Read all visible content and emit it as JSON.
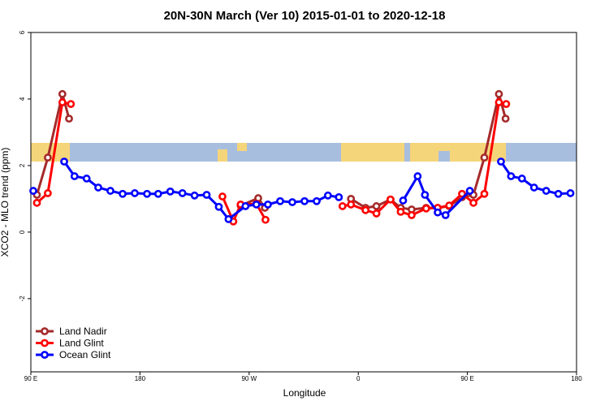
{
  "chart_data": {
    "type": "line",
    "title": "20N-30N March (Ver 10)   2015-01-01 to 2020-12-18",
    "x_label": "Longitude",
    "y_label": "XCO2 - MLO trend (ppm)",
    "xlim": [
      90,
      540
    ],
    "xticks": [
      {
        "value": 90,
        "label": "90 E"
      },
      180,
      {
        "value": 270,
        "label": "90 W"
      },
      {
        "value": 360,
        "label": "0"
      },
      {
        "value": 450,
        "label": "90 E"
      },
      180
    ],
    "ylim": [
      -4.2,
      6
    ],
    "yticks": [
      -2,
      0,
      2,
      4,
      6
    ],
    "legend": "bottom-left",
    "series": [
      {
        "name": "Land Nadir",
        "color": "#a52a2a",
        "x": [
          95,
          104,
          116,
          121.5,
          null,
          263,
          277.5,
          283,
          null,
          354,
          366,
          375,
          386.6,
          395,
          404,
          416,
          425.5,
          435,
          445.6,
          455,
          464,
          476,
          481.5
        ],
        "values": [
          1.12,
          2.24,
          4.15,
          3.41,
          null,
          0.8,
          1.02,
          0.73,
          null,
          1.0,
          0.73,
          0.78,
          0.98,
          0.73,
          0.68,
          0.73,
          0.73,
          0.78,
          1.05,
          1.12,
          2.24,
          4.15,
          3.41
        ]
      },
      {
        "name": "Land Glint",
        "color": "#ff0000",
        "x": [
          95,
          104,
          116,
          123,
          null,
          248,
          257,
          263,
          276,
          283.5,
          null,
          347,
          354,
          366,
          375,
          386.6,
          395,
          404,
          416,
          425.5,
          435,
          445.6,
          455,
          464,
          476,
          482
        ],
        "values": [
          0.88,
          1.17,
          3.9,
          3.85,
          null,
          1.07,
          0.32,
          0.83,
          0.85,
          0.37,
          null,
          0.78,
          0.83,
          0.66,
          0.56,
          0.98,
          0.61,
          0.51,
          0.71,
          0.73,
          0.8,
          1.15,
          0.88,
          1.15,
          3.9,
          3.85
        ]
      },
      {
        "name": "Ocean Glint",
        "color": "#0000ff",
        "x": [
          92,
          null,
          117.5,
          126,
          136,
          145.6,
          155.6,
          165.7,
          175.7,
          185.8,
          195,
          205,
          215,
          225,
          235,
          245,
          253,
          267,
          276,
          285.5,
          295.6,
          305.6,
          315.7,
          325.7,
          335,
          344,
          null,
          397,
          409,
          415,
          425.5,
          432,
          452,
          null,
          477.7,
          486,
          495,
          505,
          515,
          525,
          535
        ],
        "values": [
          1.24,
          null,
          2.12,
          1.68,
          1.61,
          1.34,
          1.24,
          1.15,
          1.17,
          1.15,
          1.15,
          1.22,
          1.17,
          1.1,
          1.12,
          0.76,
          0.39,
          0.78,
          0.83,
          0.83,
          0.93,
          0.9,
          0.93,
          0.93,
          1.1,
          1.05,
          null,
          0.95,
          1.68,
          1.12,
          0.59,
          0.51,
          1.24,
          null,
          2.12,
          1.68,
          1.61,
          1.34,
          1.24,
          1.15,
          1.17
        ]
      }
    ]
  }
}
